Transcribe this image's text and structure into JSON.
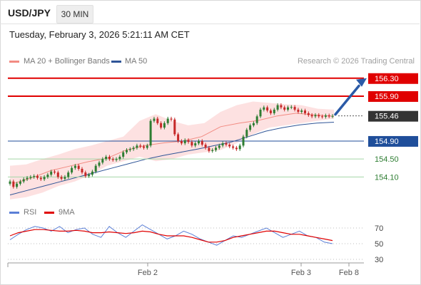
{
  "header": {
    "symbol": "USD/JPY",
    "timeframe": "30 MIN"
  },
  "datetime": "Tuesday, February 3, 2026 5:21:11 AM CET",
  "legend": {
    "ma20": "MA 20 + Bollinger Bands",
    "ma50": "MA 50",
    "rsi": "RSI",
    "rsi_ma": "9MA",
    "credit": "Research © 2026 Trading Central"
  },
  "colors": {
    "candle_up": "#2e7d32",
    "candle_down": "#c62828",
    "ma20": "#f28b82",
    "bollinger_fill": "#fcd7d7",
    "ma50": "#2f5597",
    "resistance": "#e00000",
    "support": "#1f4e9a",
    "target": "#2e7d32",
    "current": "#333333",
    "rsi": "#5b7fd6",
    "rsi_ma": "#e00000",
    "arrow": "#2b5aa7"
  },
  "chart_data": [
    {
      "type": "candlestick",
      "ylim": [
        153.55,
        156.55
      ],
      "x_labels": [
        "Feb 2",
        "Feb 3",
        "Feb 8"
      ],
      "current_price": 155.46,
      "levels": [
        {
          "value": 156.3,
          "label": "156.30",
          "kind": "resistance"
        },
        {
          "value": 155.9,
          "label": "155.90",
          "kind": "resistance"
        },
        {
          "value": 154.9,
          "label": "154.90",
          "kind": "pivot"
        },
        {
          "value": 154.5,
          "label": "154.50",
          "kind": "support"
        },
        {
          "value": 154.1,
          "label": "154.10",
          "kind": "support"
        }
      ],
      "close": [
        154.0,
        153.88,
        153.95,
        154.0,
        154.05,
        154.08,
        154.1,
        154.12,
        154.08,
        154.05,
        154.1,
        154.15,
        154.22,
        154.2,
        154.1,
        154.06,
        154.1,
        154.2,
        154.3,
        154.35,
        154.28,
        154.2,
        154.12,
        154.15,
        154.22,
        154.35,
        154.42,
        154.5,
        154.55,
        154.5,
        154.48,
        154.5,
        154.55,
        154.65,
        154.7,
        154.72,
        154.75,
        154.8,
        154.78,
        154.75,
        154.8,
        155.35,
        155.4,
        155.3,
        155.2,
        155.3,
        155.4,
        155.38,
        155.05,
        154.9,
        154.85,
        154.92,
        154.88,
        154.8,
        154.85,
        154.9,
        154.82,
        154.75,
        154.68,
        154.7,
        154.75,
        154.8,
        154.85,
        154.82,
        154.78,
        154.75,
        154.72,
        154.8,
        155.0,
        155.15,
        155.25,
        155.3,
        155.45,
        155.6,
        155.65,
        155.58,
        155.52,
        155.6,
        155.7,
        155.65,
        155.6,
        155.65,
        155.66,
        155.6,
        155.55,
        155.58,
        155.52,
        155.48,
        155.45,
        155.48,
        155.45,
        155.44,
        155.47,
        155.45,
        155.46
      ],
      "ma20": [
        153.95,
        154.08,
        154.24,
        154.34,
        154.44,
        154.52,
        154.7,
        154.8,
        154.86,
        154.9,
        155.0,
        155.22,
        155.3,
        155.36,
        155.46,
        155.52,
        155.48,
        155.45
      ],
      "bollinger_upper": [
        154.35,
        154.38,
        154.5,
        154.6,
        154.72,
        154.8,
        154.9,
        155.0,
        155.35,
        155.5,
        155.35,
        155.25,
        155.3,
        155.55,
        155.7,
        155.78,
        155.75,
        155.72,
        155.7,
        155.62,
        155.6
      ],
      "bollinger_lower": [
        153.6,
        153.65,
        153.75,
        153.9,
        154.0,
        154.15,
        154.35,
        154.45,
        154.55,
        154.45,
        154.5,
        154.6,
        154.65,
        154.7,
        154.85,
        155.05,
        155.2,
        155.25,
        155.3,
        155.35,
        155.4
      ],
      "ma50": [
        153.7,
        153.8,
        153.9,
        154.0,
        154.1,
        154.2,
        154.3,
        154.4,
        154.5,
        154.58,
        154.65,
        154.72,
        154.8,
        154.88,
        155.0,
        155.12,
        155.2,
        155.26,
        155.3,
        155.32
      ]
    },
    {
      "type": "line",
      "title": "RSI",
      "ylim": [
        20,
        80
      ],
      "y_ticks": [
        70,
        50,
        30
      ],
      "rsi": [
        55,
        62,
        68,
        72,
        70,
        66,
        72,
        64,
        68,
        70,
        62,
        58,
        72,
        64,
        58,
        66,
        74,
        68,
        62,
        56,
        60,
        66,
        62,
        56,
        52,
        48,
        54,
        60,
        58,
        62,
        66,
        70,
        64,
        58,
        62,
        66,
        60,
        58,
        52,
        50
      ],
      "rsi_ma": [
        60,
        64,
        66,
        68,
        68,
        67,
        66,
        66,
        67,
        66,
        64,
        64,
        65,
        64,
        63,
        64,
        66,
        65,
        62,
        60,
        60,
        60,
        58,
        55,
        52,
        52,
        54,
        58,
        60,
        62,
        64,
        66,
        66,
        64,
        62,
        62,
        60,
        58,
        56,
        54
      ]
    }
  ]
}
